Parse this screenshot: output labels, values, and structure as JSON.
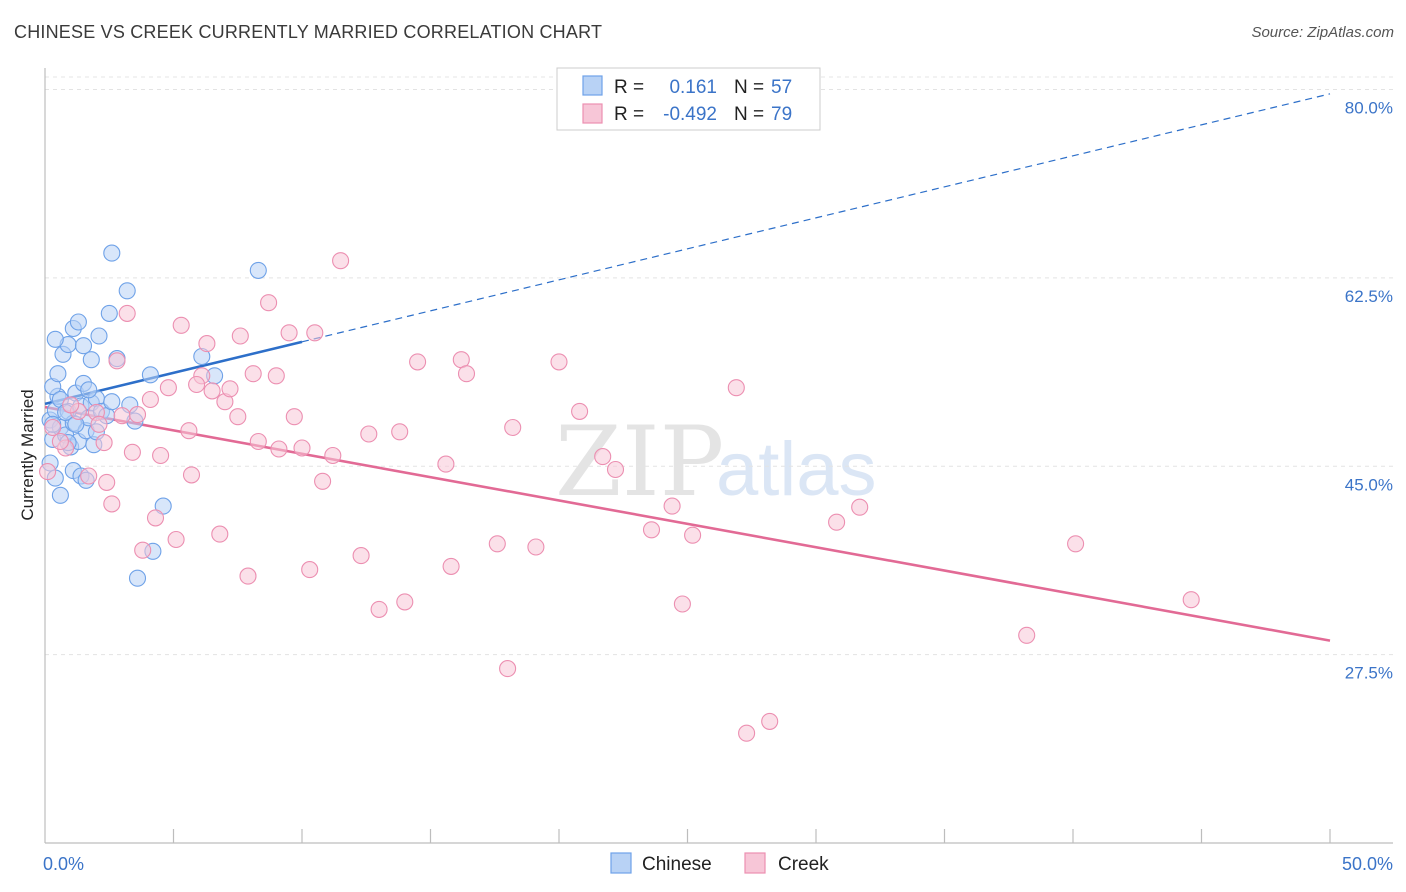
{
  "title": "CHINESE VS CREEK CURRENTLY MARRIED CORRELATION CHART",
  "source": "Source: ZipAtlas.com",
  "watermark": {
    "zip": "ZIP",
    "atlas": "atlas"
  },
  "colors": {
    "chinese": "#6fa2e8",
    "chinese_fill": "#b8d2f5",
    "chinese_line": "#2d6fc9",
    "creek": "#ec8fb1",
    "creek_fill": "#f7c6d7",
    "creek_line": "#e26a95",
    "tick_text": "#3b74c8"
  },
  "legend": {
    "r_label": "R =",
    "n_label": "N =",
    "rows": [
      {
        "r": "0.161",
        "n": "57"
      },
      {
        "r": "-0.492",
        "n": "79"
      }
    ]
  },
  "bottom_legend": [
    "Chinese",
    "Creek"
  ],
  "chart_data": {
    "type": "scatter",
    "title": "CHINESE VS CREEK CURRENTLY MARRIED CORRELATION CHART",
    "xlabel": "",
    "ylabel": "Currently Married",
    "xlim": [
      0,
      50
    ],
    "ylim": [
      10,
      82
    ],
    "x_tick_labels": [
      "0.0%",
      "50.0%"
    ],
    "y_ticks": [
      27.5,
      45.0,
      62.5,
      80.0
    ],
    "y_tick_labels": [
      "27.5%",
      "45.0%",
      "62.5%",
      "80.0%"
    ],
    "grid": true,
    "series": [
      {
        "name": "Chinese",
        "r": 0.161,
        "n": 57,
        "trend": {
          "x0": 0,
          "y0": 50.8,
          "x1": 50,
          "y1": 79.6,
          "solid_until_x": 10
        },
        "points": [
          [
            0.2,
            49.3
          ],
          [
            0.3,
            47.5
          ],
          [
            0.4,
            50.2
          ],
          [
            0.5,
            51.5
          ],
          [
            0.6,
            48.6
          ],
          [
            0.8,
            47.9
          ],
          [
            0.9,
            50.1
          ],
          [
            1.0,
            46.8
          ],
          [
            1.1,
            49.0
          ],
          [
            1.2,
            51.8
          ],
          [
            1.3,
            47.3
          ],
          [
            1.4,
            50.6
          ],
          [
            1.5,
            52.7
          ],
          [
            1.6,
            48.3
          ],
          [
            1.7,
            49.5
          ],
          [
            1.8,
            50.9
          ],
          [
            1.9,
            47.0
          ],
          [
            2.0,
            51.3
          ],
          [
            2.2,
            50.1
          ],
          [
            2.4,
            49.7
          ],
          [
            2.6,
            51.0
          ],
          [
            0.3,
            52.4
          ],
          [
            0.5,
            53.6
          ],
          [
            0.7,
            55.4
          ],
          [
            0.9,
            56.3
          ],
          [
            1.1,
            57.8
          ],
          [
            1.3,
            58.4
          ],
          [
            1.5,
            56.2
          ],
          [
            1.8,
            54.9
          ],
          [
            2.1,
            57.1
          ],
          [
            2.5,
            59.2
          ],
          [
            2.8,
            55.0
          ],
          [
            0.4,
            56.8
          ],
          [
            0.6,
            51.2
          ],
          [
            0.2,
            45.3
          ],
          [
            0.4,
            43.9
          ],
          [
            0.6,
            42.3
          ],
          [
            1.1,
            44.6
          ],
          [
            1.4,
            44.1
          ],
          [
            1.6,
            43.7
          ],
          [
            3.3,
            50.7
          ],
          [
            3.5,
            49.2
          ],
          [
            4.1,
            53.5
          ],
          [
            6.1,
            55.2
          ],
          [
            6.6,
            53.4
          ],
          [
            8.3,
            63.2
          ],
          [
            2.6,
            64.8
          ],
          [
            3.2,
            61.3
          ],
          [
            4.6,
            41.3
          ],
          [
            3.6,
            34.6
          ],
          [
            4.2,
            37.1
          ],
          [
            0.8,
            50.0
          ],
          [
            1.2,
            48.9
          ],
          [
            2.0,
            48.2
          ],
          [
            0.3,
            48.9
          ],
          [
            0.9,
            47.2
          ],
          [
            1.7,
            52.1
          ]
        ]
      },
      {
        "name": "Creek",
        "r": -0.492,
        "n": 79,
        "trend": {
          "x0": 0,
          "y0": 50.5,
          "x1": 50,
          "y1": 28.8
        },
        "points": [
          [
            0.1,
            44.5
          ],
          [
            0.3,
            48.6
          ],
          [
            0.8,
            46.7
          ],
          [
            1.3,
            50.1
          ],
          [
            1.7,
            44.1
          ],
          [
            2.0,
            50.0
          ],
          [
            2.3,
            47.2
          ],
          [
            2.4,
            43.5
          ],
          [
            2.6,
            41.5
          ],
          [
            2.8,
            54.8
          ],
          [
            3.0,
            49.7
          ],
          [
            3.2,
            59.2
          ],
          [
            3.6,
            49.8
          ],
          [
            3.8,
            37.2
          ],
          [
            4.1,
            51.2
          ],
          [
            4.3,
            40.2
          ],
          [
            4.5,
            46.0
          ],
          [
            4.8,
            52.3
          ],
          [
            5.1,
            38.2
          ],
          [
            5.3,
            58.1
          ],
          [
            5.6,
            48.3
          ],
          [
            5.7,
            44.2
          ],
          [
            6.1,
            53.4
          ],
          [
            6.3,
            56.4
          ],
          [
            6.5,
            52.0
          ],
          [
            6.8,
            38.7
          ],
          [
            7.0,
            51.0
          ],
          [
            7.2,
            52.2
          ],
          [
            7.5,
            49.6
          ],
          [
            7.6,
            57.1
          ],
          [
            7.9,
            34.8
          ],
          [
            8.1,
            53.6
          ],
          [
            8.3,
            47.3
          ],
          [
            8.7,
            60.2
          ],
          [
            9.0,
            53.4
          ],
          [
            9.1,
            46.6
          ],
          [
            9.5,
            57.4
          ],
          [
            9.7,
            49.6
          ],
          [
            10.0,
            46.7
          ],
          [
            10.3,
            35.4
          ],
          [
            10.5,
            57.4
          ],
          [
            10.8,
            43.6
          ],
          [
            11.2,
            46.0
          ],
          [
            11.5,
            64.1
          ],
          [
            12.6,
            48.0
          ],
          [
            12.3,
            36.7
          ],
          [
            13.0,
            31.7
          ],
          [
            13.8,
            48.2
          ],
          [
            14.0,
            32.4
          ],
          [
            14.5,
            54.7
          ],
          [
            15.6,
            45.2
          ],
          [
            15.8,
            35.7
          ],
          [
            16.2,
            54.9
          ],
          [
            16.4,
            53.6
          ],
          [
            17.6,
            37.8
          ],
          [
            18.0,
            26.2
          ],
          [
            18.2,
            48.6
          ],
          [
            19.1,
            37.5
          ],
          [
            20.0,
            54.7
          ],
          [
            20.8,
            50.1
          ],
          [
            21.7,
            45.9
          ],
          [
            22.2,
            44.7
          ],
          [
            23.6,
            39.1
          ],
          [
            24.4,
            41.3
          ],
          [
            24.8,
            32.2
          ],
          [
            25.2,
            38.6
          ],
          [
            26.9,
            52.3
          ],
          [
            27.3,
            20.2
          ],
          [
            28.2,
            21.3
          ],
          [
            30.8,
            39.8
          ],
          [
            31.7,
            41.2
          ],
          [
            38.2,
            29.3
          ],
          [
            40.1,
            37.8
          ],
          [
            44.6,
            32.6
          ],
          [
            1.0,
            50.7
          ],
          [
            2.1,
            48.9
          ],
          [
            3.4,
            46.3
          ],
          [
            5.9,
            52.6
          ],
          [
            0.6,
            47.3
          ]
        ]
      }
    ]
  }
}
